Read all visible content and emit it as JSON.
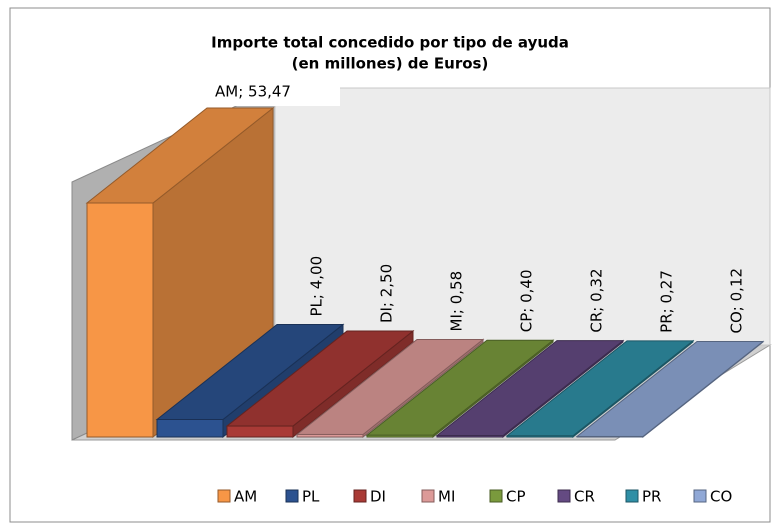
{
  "chart_data": {
    "type": "bar3d",
    "title": [
      "Importe total concedido por tipo de ayuda",
      "(en millones) de Euros)"
    ],
    "categories": [
      "AM",
      "PL",
      "DI",
      "MI",
      "CP",
      "CR",
      "PR",
      "CO"
    ],
    "series": [
      {
        "name": null,
        "values": [
          53.47,
          4.0,
          2.5,
          0.58,
          0.4,
          0.32,
          0.27,
          0.12
        ],
        "value_labels": [
          "AM; 53,47",
          "PL; 4,00",
          "DI; 2,50",
          "MI; 0,58",
          "CP; 0,40",
          "CR; 0,32",
          "PR; 0,27",
          "CO; 0,12"
        ],
        "colors": [
          "#f79646",
          "#2c5290",
          "#a93a36",
          "#dc9a98",
          "#7a9a3d",
          "#644a82",
          "#2f8fa6",
          "#90a8d6"
        ]
      }
    ]
  }
}
